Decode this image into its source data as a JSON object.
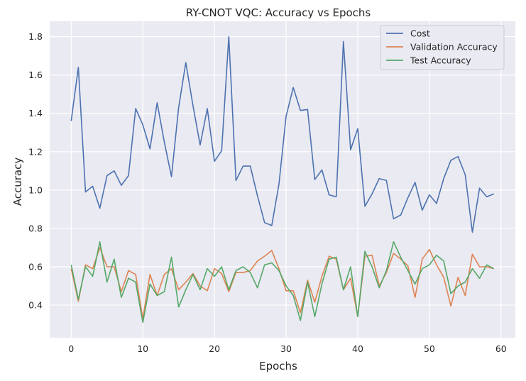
{
  "chart_data": {
    "type": "line",
    "title": "RY-CNOT VQC: Accuracy vs Epochs",
    "xlabel": "Epochs",
    "ylabel": "Accuracy",
    "xlim": [
      -3,
      62
    ],
    "ylim": [
      0.23,
      1.88
    ],
    "xticks": [
      0,
      10,
      20,
      30,
      40,
      50,
      60
    ],
    "yticks": [
      0.4,
      0.6,
      0.8,
      1.0,
      1.2,
      1.4,
      1.6,
      1.8
    ],
    "xtick_labels": [
      "0",
      "10",
      "20",
      "30",
      "40",
      "50",
      "60"
    ],
    "ytick_labels": [
      "0.4",
      "0.6",
      "0.8",
      "1.0",
      "1.2",
      "1.4",
      "1.6",
      "1.8"
    ],
    "grid": true,
    "legend_position": "top-right",
    "x": [
      0,
      1,
      2,
      3,
      4,
      5,
      6,
      7,
      8,
      9,
      10,
      11,
      12,
      13,
      14,
      15,
      16,
      17,
      18,
      19,
      20,
      21,
      22,
      23,
      24,
      25,
      26,
      27,
      28,
      29,
      30,
      31,
      32,
      33,
      34,
      35,
      36,
      37,
      38,
      39,
      40,
      41,
      42,
      43,
      44,
      45,
      46,
      47,
      48,
      49,
      50,
      51,
      52,
      53,
      54,
      55,
      56,
      57,
      58,
      59
    ],
    "series": [
      {
        "name": "Cost",
        "color": "#4c72b0",
        "values": [
          1.36,
          1.64,
          0.99,
          1.02,
          0.905,
          1.075,
          1.1,
          1.025,
          1.075,
          1.425,
          1.34,
          1.215,
          1.455,
          1.25,
          1.07,
          1.43,
          1.665,
          1.44,
          1.235,
          1.425,
          1.15,
          1.205,
          1.8,
          1.05,
          1.125,
          1.125,
          0.97,
          0.83,
          0.815,
          1.03,
          1.385,
          1.535,
          1.415,
          1.42,
          1.055,
          1.105,
          0.975,
          0.965,
          1.775,
          1.21,
          1.32,
          0.915,
          0.98,
          1.06,
          1.05,
          0.85,
          0.87,
          0.96,
          1.04,
          0.895,
          0.975,
          0.93,
          1.06,
          1.155,
          1.175,
          1.08,
          0.78,
          1.01,
          0.965,
          0.98
        ]
      },
      {
        "name": "Validation Accuracy",
        "color": "#dd8452",
        "values": [
          0.59,
          0.42,
          0.61,
          0.59,
          0.7,
          0.6,
          0.6,
          0.47,
          0.58,
          0.56,
          0.33,
          0.56,
          0.45,
          0.56,
          0.59,
          0.48,
          0.52,
          0.565,
          0.5,
          0.475,
          0.59,
          0.565,
          0.47,
          0.57,
          0.57,
          0.58,
          0.63,
          0.655,
          0.685,
          0.59,
          0.475,
          0.475,
          0.36,
          0.53,
          0.415,
          0.55,
          0.655,
          0.64,
          0.48,
          0.54,
          0.34,
          0.655,
          0.66,
          0.5,
          0.57,
          0.67,
          0.64,
          0.605,
          0.44,
          0.64,
          0.69,
          0.61,
          0.545,
          0.395,
          0.545,
          0.45,
          0.665,
          0.6,
          0.6,
          0.59
        ]
      },
      {
        "name": "Test Accuracy",
        "color": "#55a868",
        "values": [
          0.61,
          0.43,
          0.6,
          0.55,
          0.73,
          0.52,
          0.64,
          0.44,
          0.54,
          0.52,
          0.31,
          0.51,
          0.45,
          0.47,
          0.65,
          0.39,
          0.48,
          0.56,
          0.48,
          0.59,
          0.55,
          0.6,
          0.48,
          0.58,
          0.6,
          0.57,
          0.49,
          0.61,
          0.62,
          0.58,
          0.5,
          0.45,
          0.32,
          0.52,
          0.34,
          0.51,
          0.64,
          0.65,
          0.48,
          0.6,
          0.34,
          0.68,
          0.6,
          0.49,
          0.58,
          0.73,
          0.65,
          0.58,
          0.51,
          0.59,
          0.61,
          0.66,
          0.63,
          0.46,
          0.5,
          0.52,
          0.59,
          0.54,
          0.61,
          0.59
        ]
      }
    ]
  }
}
